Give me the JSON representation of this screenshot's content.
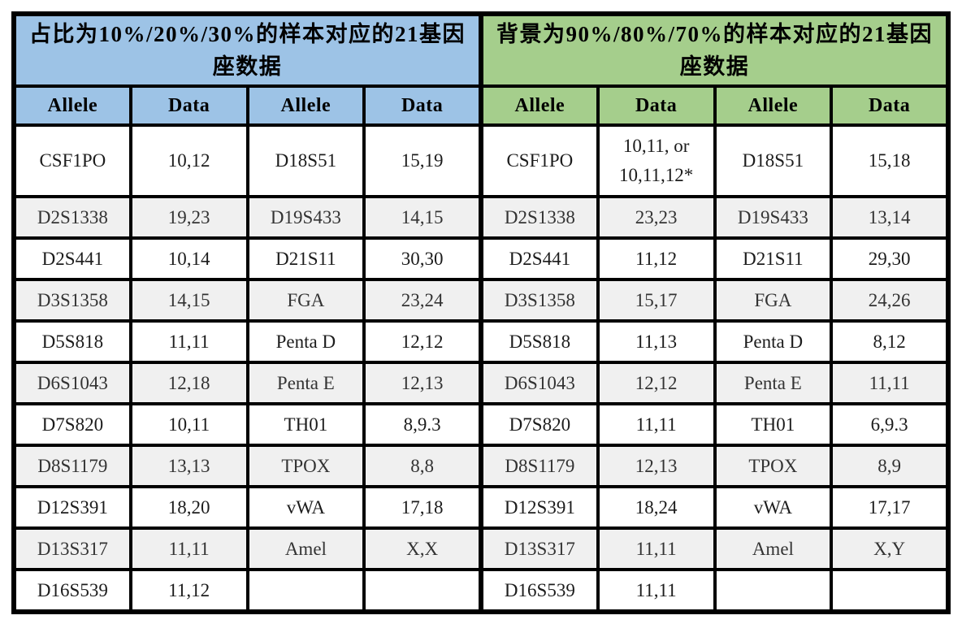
{
  "left_table": {
    "title": "占比为10%/20%/30%的样本对应的21基因座数据",
    "header_color": "#9DC3E6",
    "columns": [
      "Allele",
      "Data",
      "Allele",
      "Data"
    ],
    "rows": [
      [
        "CSF1PO",
        "10,12",
        "D18S51",
        "15,19"
      ],
      [
        "D2S1338",
        "19,23",
        "D19S433",
        "14,15"
      ],
      [
        "D2S441",
        "10,14",
        "D21S11",
        "30,30"
      ],
      [
        "D3S1358",
        "14,15",
        "FGA",
        "23,24"
      ],
      [
        "D5S818",
        "11,11",
        "Penta D",
        "12,12"
      ],
      [
        "D6S1043",
        "12,18",
        "Penta E",
        "12,13"
      ],
      [
        "D7S820",
        "10,11",
        "TH01",
        "8,9.3"
      ],
      [
        "D8S1179",
        "13,13",
        "TPOX",
        "8,8"
      ],
      [
        "D12S391",
        "18,20",
        "vWA",
        "17,18"
      ],
      [
        "D13S317",
        "11,11",
        "Amel",
        "X,X"
      ],
      [
        "D16S539",
        "11,12",
        "",
        ""
      ]
    ]
  },
  "right_table": {
    "title": "背景为90%/80%/70%的样本对应的21基因座数据",
    "header_color": "#A5CE8C",
    "columns": [
      "Allele",
      "Data",
      "Allele",
      "Data"
    ],
    "rows": [
      [
        "CSF1PO",
        "10,11, or 10,11,12*",
        "D18S51",
        "15,18"
      ],
      [
        "D2S1338",
        "23,23",
        "D19S433",
        "13,14"
      ],
      [
        "D2S441",
        "11,12",
        "D21S11",
        "29,30"
      ],
      [
        "D3S1358",
        "15,17",
        "FGA",
        "24,26"
      ],
      [
        "D5S818",
        "11,13",
        "Penta D",
        "8,12"
      ],
      [
        "D6S1043",
        "12,12",
        "Penta E",
        "11,11"
      ],
      [
        "D7S820",
        "11,11",
        "TH01",
        "6,9.3"
      ],
      [
        "D8S1179",
        "12,13",
        "TPOX",
        "8,9"
      ],
      [
        "D12S391",
        "18,24",
        "vWA",
        "17,17"
      ],
      [
        "D13S317",
        "11,11",
        "Amel",
        "X,Y"
      ],
      [
        "D16S539",
        "11,11",
        "",
        ""
      ]
    ]
  },
  "chart_data": {
    "type": "table",
    "tables": [
      {
        "title": "占比为10%/20%/30%的样本对应的21基因座数据",
        "columns": [
          "Allele",
          "Data",
          "Allele",
          "Data"
        ]
      },
      {
        "title": "背景为90%/80%/70%的样本对应的21基因座数据",
        "columns": [
          "Allele",
          "Data",
          "Allele",
          "Data"
        ]
      }
    ]
  },
  "colors": {
    "left_header": "#9DC3E6",
    "right_header": "#A5CE8C",
    "shaded_row": "#F0F0F0",
    "border": "#000000"
  }
}
